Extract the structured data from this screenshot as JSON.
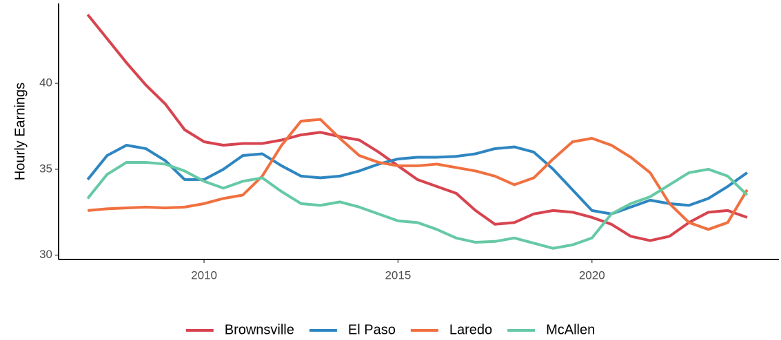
{
  "chart_data": {
    "type": "line",
    "y_label": "Hourly Earnings",
    "x": [
      2007,
      2007.5,
      2008,
      2008.5,
      2009,
      2009.5,
      2010,
      2010.5,
      2011,
      2011.5,
      2012,
      2012.5,
      2013,
      2013.5,
      2014,
      2014.5,
      2015,
      2015.5,
      2016,
      2016.5,
      2017,
      2017.5,
      2018,
      2018.5,
      2019,
      2019.5,
      2020,
      2020.5,
      2021,
      2021.5,
      2022,
      2022.5,
      2023,
      2023.5,
      2024
    ],
    "series": [
      {
        "name": "Brownsville",
        "color": "#d7444f",
        "values": [
          44.0,
          42.6,
          41.2,
          39.9,
          38.8,
          37.3,
          36.6,
          36.4,
          36.5,
          36.5,
          36.7,
          37.0,
          37.15,
          36.9,
          36.7,
          36.0,
          35.2,
          34.4,
          34.0,
          33.6,
          32.6,
          31.8,
          31.9,
          32.4,
          32.6,
          32.5,
          32.2,
          31.8,
          31.1,
          30.85,
          31.1,
          31.9,
          32.5,
          32.6,
          32.2
        ]
      },
      {
        "name": "El Paso",
        "color": "#2e86c1",
        "values": [
          34.4,
          35.8,
          36.4,
          36.2,
          35.5,
          34.4,
          34.4,
          35.0,
          35.8,
          35.9,
          35.2,
          34.6,
          34.5,
          34.6,
          34.9,
          35.3,
          35.6,
          35.7,
          35.7,
          35.75,
          35.9,
          36.2,
          36.3,
          36.0,
          35.0,
          33.8,
          32.6,
          32.4,
          32.8,
          33.2,
          33.0,
          32.9,
          33.3,
          34.0,
          34.8
        ]
      },
      {
        "name": "Laredo",
        "color": "#f07040",
        "values": [
          32.6,
          32.7,
          32.75,
          32.8,
          32.75,
          32.8,
          33.0,
          33.3,
          33.5,
          34.6,
          36.4,
          37.8,
          37.9,
          36.8,
          35.8,
          35.4,
          35.2,
          35.2,
          35.3,
          35.1,
          34.9,
          34.6,
          34.1,
          34.5,
          35.6,
          36.6,
          36.8,
          36.4,
          35.7,
          34.8,
          33.0,
          31.9,
          31.5,
          31.9,
          33.8
        ]
      },
      {
        "name": "McAllen",
        "color": "#66c9a5",
        "values": [
          33.3,
          34.7,
          35.4,
          35.4,
          35.3,
          34.9,
          34.3,
          33.9,
          34.3,
          34.5,
          33.7,
          33.0,
          32.9,
          33.1,
          32.8,
          32.4,
          32.0,
          31.9,
          31.5,
          31.0,
          30.75,
          30.8,
          31.0,
          30.7,
          30.4,
          30.6,
          31.0,
          32.4,
          33.0,
          33.4,
          34.1,
          34.8,
          35.0,
          34.6,
          33.5
        ]
      }
    ],
    "xlim": [
      2006.25,
      2024.82
    ],
    "xticks": [
      2010,
      2015,
      2020
    ],
    "ylim": [
      29.75,
      44.65
    ],
    "yticks": [
      30,
      35,
      40
    ],
    "grid": false,
    "legend": "bottom"
  }
}
